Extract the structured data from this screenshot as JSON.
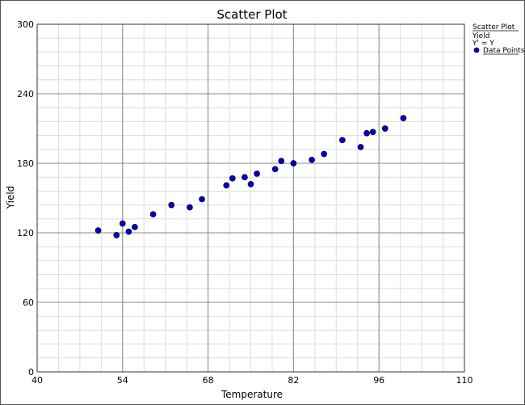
{
  "chart_data": {
    "type": "scatter",
    "title": "Scatter Plot",
    "xlabel": "Temperature",
    "ylabel": "Yield",
    "xlim": [
      40,
      110
    ],
    "ylim": [
      0,
      300
    ],
    "x_ticks": [
      40,
      54,
      68,
      82,
      96,
      110
    ],
    "y_ticks": [
      0,
      60,
      120,
      180,
      240,
      300
    ],
    "grid": true,
    "legend": {
      "placement": "top-right",
      "title": "Scatter Plot",
      "subtitle": "Yield",
      "formula": "Y' = Y",
      "entries": [
        "Data Points"
      ]
    },
    "colors": {
      "point_fill": "#0000cc",
      "point_stroke": "#000033"
    },
    "series": [
      {
        "name": "Data Points",
        "points": [
          {
            "x": 50,
            "y": 122
          },
          {
            "x": 53,
            "y": 118
          },
          {
            "x": 54,
            "y": 128
          },
          {
            "x": 55,
            "y": 121
          },
          {
            "x": 56,
            "y": 125
          },
          {
            "x": 59,
            "y": 136
          },
          {
            "x": 62,
            "y": 144
          },
          {
            "x": 65,
            "y": 142
          },
          {
            "x": 67,
            "y": 149
          },
          {
            "x": 71,
            "y": 161
          },
          {
            "x": 72,
            "y": 167
          },
          {
            "x": 74,
            "y": 168
          },
          {
            "x": 75,
            "y": 162
          },
          {
            "x": 76,
            "y": 171
          },
          {
            "x": 79,
            "y": 175
          },
          {
            "x": 80,
            "y": 182
          },
          {
            "x": 82,
            "y": 180
          },
          {
            "x": 85,
            "y": 183
          },
          {
            "x": 87,
            "y": 188
          },
          {
            "x": 90,
            "y": 200
          },
          {
            "x": 93,
            "y": 194
          },
          {
            "x": 94,
            "y": 206
          },
          {
            "x": 95,
            "y": 207
          },
          {
            "x": 97,
            "y": 210
          },
          {
            "x": 100,
            "y": 219
          }
        ]
      }
    ]
  }
}
